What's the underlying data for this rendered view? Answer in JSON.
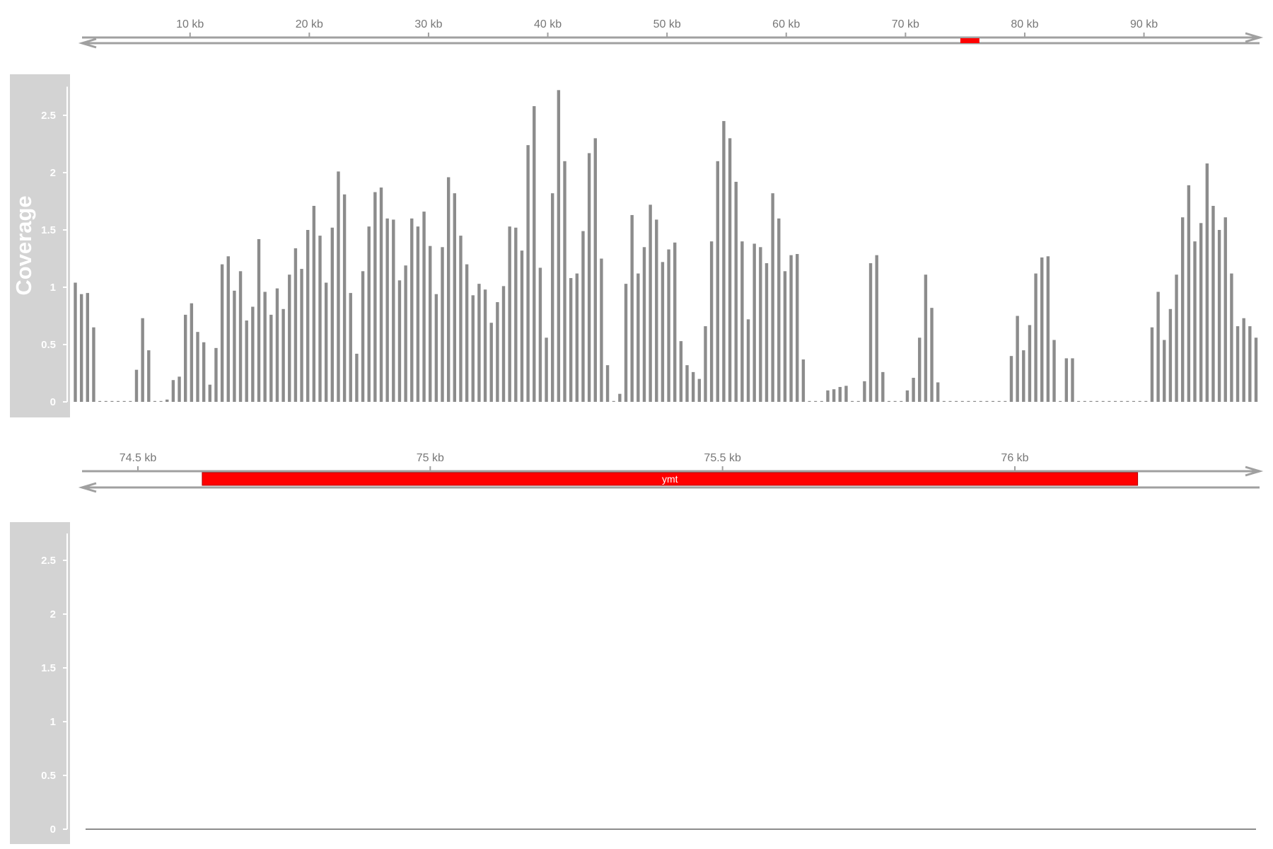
{
  "chart_data": [
    {
      "type": "ideogram-axis",
      "unit": "kb",
      "ticks": [
        {
          "value": 10,
          "label": "10 kb"
        },
        {
          "value": 20,
          "label": "20 kb"
        },
        {
          "value": 30,
          "label": "30 kb"
        },
        {
          "value": 40,
          "label": "40 kb"
        },
        {
          "value": 50,
          "label": "50 kb"
        },
        {
          "value": 60,
          "label": "60 kb"
        },
        {
          "value": 70,
          "label": "70 kb"
        },
        {
          "value": 80,
          "label": "80 kb"
        },
        {
          "value": 90,
          "label": "90 kb"
        }
      ],
      "xlim": [
        0,
        95
      ],
      "highlight": {
        "start": 74.6,
        "end": 76.2,
        "color": "#ff0000"
      }
    },
    {
      "type": "bar",
      "ylabel": "Coverage",
      "ylim": [
        0,
        2.75
      ],
      "yticks": [
        {
          "value": 0,
          "label": "0"
        },
        {
          "value": 0.5,
          "label": "0.5"
        },
        {
          "value": 1,
          "label": "1"
        },
        {
          "value": 1.5,
          "label": "1.5"
        },
        {
          "value": 2,
          "label": "2"
        },
        {
          "value": 2.5,
          "label": "2.5"
        }
      ],
      "x_range_kb": [
        0,
        95
      ],
      "bar_color": "#8c8c8c",
      "values": [
        1.04,
        0.94,
        0.95,
        0.65,
        0,
        0,
        0,
        0,
        0,
        0,
        0.28,
        0.73,
        0.45,
        0,
        0,
        0.02,
        0.19,
        0.22,
        0.76,
        0.86,
        0.61,
        0.52,
        0.15,
        0.47,
        1.2,
        1.27,
        0.97,
        1.14,
        0.71,
        0.83,
        1.42,
        0.96,
        0.76,
        0.99,
        0.81,
        1.11,
        1.34,
        1.16,
        1.5,
        1.71,
        1.45,
        1.04,
        1.52,
        2.01,
        1.81,
        0.95,
        0.42,
        1.14,
        1.53,
        1.83,
        1.87,
        1.6,
        1.59,
        1.06,
        1.19,
        1.6,
        1.53,
        1.66,
        1.36,
        0.94,
        1.35,
        1.96,
        1.82,
        1.45,
        1.2,
        0.93,
        1.03,
        0.98,
        0.69,
        0.87,
        1.01,
        1.53,
        1.52,
        1.32,
        2.24,
        2.58,
        1.17,
        0.56,
        1.82,
        2.72,
        2.1,
        1.08,
        1.12,
        1.49,
        2.17,
        2.3,
        1.25,
        0.32,
        0,
        0.07,
        1.03,
        1.63,
        1.12,
        1.35,
        1.72,
        1.59,
        1.22,
        1.33,
        1.39,
        0.53,
        0.32,
        0.26,
        0.2,
        0.66,
        1.4,
        2.1,
        2.45,
        2.3,
        1.92,
        1.4,
        0.72,
        1.38,
        1.35,
        1.21,
        1.82,
        1.6,
        1.14,
        1.28,
        1.29,
        0.37,
        0,
        0,
        0,
        0.1,
        0.11,
        0.13,
        0.14,
        0,
        0,
        0.18,
        1.21,
        1.28,
        0.26,
        0,
        0,
        0,
        0.1,
        0.21,
        0.56,
        1.11,
        0.82,
        0.17,
        0,
        0,
        0,
        0,
        0,
        0,
        0,
        0,
        0,
        0,
        0,
        0.4,
        0.75,
        0.45,
        0.67,
        1.12,
        1.26,
        1.27,
        0.54,
        0,
        0.38,
        0.38,
        0,
        0,
        0,
        0,
        0,
        0,
        0,
        0,
        0,
        0,
        0,
        0,
        0.65,
        0.96,
        0.54,
        0.81,
        1.11,
        1.61,
        1.89,
        1.4,
        1.56,
        2.08,
        1.71,
        1.5,
        1.61,
        1.12,
        0.66,
        0.73,
        0.66,
        0.56
      ]
    },
    {
      "type": "gene-axis",
      "unit": "kb",
      "ticks": [
        {
          "value": 74.5,
          "label": "74.5 kb"
        },
        {
          "value": 75,
          "label": "75 kb"
        },
        {
          "value": 75.5,
          "label": "75.5 kb"
        },
        {
          "value": 76,
          "label": "76 kb"
        }
      ],
      "xlim": [
        74.4,
        76.4
      ],
      "gene": {
        "name": "ymt",
        "start": 74.61,
        "end": 76.21,
        "color": "#ff0000"
      }
    },
    {
      "type": "bar",
      "ylabel": "",
      "ylim": [
        0,
        2.75
      ],
      "yticks": [
        {
          "value": 0,
          "label": "0"
        },
        {
          "value": 0.5,
          "label": "0.5"
        },
        {
          "value": 1,
          "label": "1"
        },
        {
          "value": 1.5,
          "label": "1.5"
        },
        {
          "value": 2,
          "label": "2"
        },
        {
          "value": 2.5,
          "label": "2.5"
        }
      ],
      "values": [
        0
      ],
      "baseline_color": "#8c8c8c"
    }
  ],
  "colors": {
    "axis_gray": "#a0a0a0",
    "panel_gray": "#d3d3d3",
    "tick_label_gray": "#777777",
    "bar_gray": "#8c8c8c",
    "highlight_red": "#ff0000",
    "white": "#ffffff"
  }
}
